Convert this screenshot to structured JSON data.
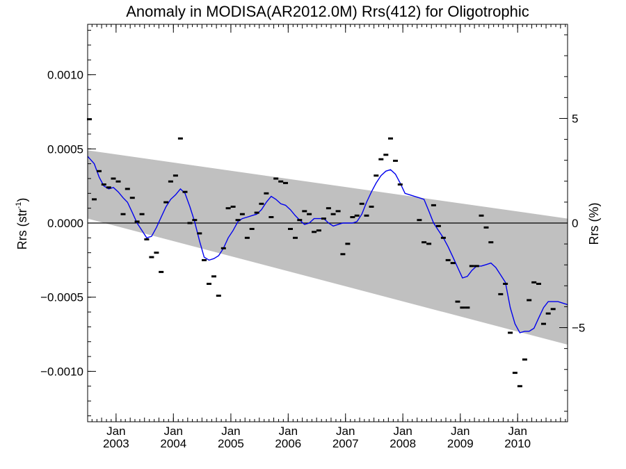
{
  "chart_data": {
    "type": "scatter",
    "title": "Anomaly in MODISA(AR2012.0M) Rrs(412) for Oligotrophic",
    "ylabel_left": {
      "base": "Rrs (str",
      "sup": "-1",
      "close": ")"
    },
    "ylabel_right": "Rrs (%)",
    "xlim": [
      "2002-07-04",
      "2010-11-15"
    ],
    "ylim": [
      -0.00134,
      0.00134
    ],
    "ylim_right_pct": [
      -9.5,
      9.5
    ],
    "x_ticks": [
      {
        "month": "Jan",
        "year": "2003",
        "date": "2003-01-01"
      },
      {
        "month": "Jan",
        "year": "2004",
        "date": "2004-01-01"
      },
      {
        "month": "Jan",
        "year": "2005",
        "date": "2005-01-01"
      },
      {
        "month": "Jan",
        "year": "2006",
        "date": "2006-01-01"
      },
      {
        "month": "Jan",
        "year": "2007",
        "date": "2007-01-01"
      },
      {
        "month": "Jan",
        "year": "2008",
        "date": "2008-01-01"
      },
      {
        "month": "Jan",
        "year": "2009",
        "date": "2009-01-01"
      },
      {
        "month": "Jan",
        "year": "2010",
        "date": "2010-01-01"
      }
    ],
    "y_ticks_left": [
      {
        "label": "0.0010",
        "value": 0.001
      },
      {
        "label": "0.0005",
        "value": 0.0005
      },
      {
        "label": "0.0000",
        "value": 0.0
      },
      {
        "label": "−0.0005",
        "value": -0.0005
      },
      {
        "label": "−0.0010",
        "value": -0.001
      }
    ],
    "y_ticks_right": [
      {
        "label": "5",
        "value": 5
      },
      {
        "label": "0",
        "value": 0
      },
      {
        "label": "−5",
        "value": -5
      }
    ],
    "band": {
      "color": "#c0c0c0",
      "upper": [
        [
          "2002-07-04",
          0.00049
        ],
        [
          "2010-11-15",
          3e-05
        ]
      ],
      "lower": [
        [
          "2002-07-04",
          3e-05
        ],
        [
          "2010-11-15",
          -0.00082
        ]
      ]
    },
    "zero_line": 0.0,
    "monthly_anomaly": [
      [
        "2002-07-15",
        0.0007
      ],
      [
        "2002-08-15",
        0.00016
      ],
      [
        "2002-09-15",
        0.00035
      ],
      [
        "2002-10-15",
        0.00026
      ],
      [
        "2002-11-15",
        0.00024
      ],
      [
        "2002-12-15",
        0.0003
      ],
      [
        "2003-01-15",
        0.00028
      ],
      [
        "2003-02-15",
        6e-05
      ],
      [
        "2003-03-15",
        0.00023
      ],
      [
        "2003-04-15",
        0.00017
      ],
      [
        "2003-05-15",
        1e-05
      ],
      [
        "2003-06-15",
        6e-05
      ],
      [
        "2003-07-15",
        -0.00011
      ],
      [
        "2003-08-15",
        -0.00023
      ],
      [
        "2003-09-15",
        -0.0002
      ],
      [
        "2003-10-15",
        -0.00033
      ],
      [
        "2003-11-15",
        0.00014
      ],
      [
        "2003-12-15",
        0.00028
      ],
      [
        "2004-01-15",
        0.00032
      ],
      [
        "2004-02-15",
        0.00057
      ],
      [
        "2004-03-15",
        0.00021
      ],
      [
        "2004-04-15",
        0.0
      ],
      [
        "2004-05-15",
        2e-05
      ],
      [
        "2004-06-15",
        -7e-05
      ],
      [
        "2004-07-15",
        -0.00025
      ],
      [
        "2004-08-15",
        -0.00041
      ],
      [
        "2004-09-15",
        -0.00036
      ],
      [
        "2004-10-15",
        -0.00049
      ],
      [
        "2004-11-15",
        -0.00017
      ],
      [
        "2004-12-15",
        0.0001
      ],
      [
        "2005-01-15",
        0.00011
      ],
      [
        "2005-02-15",
        2e-05
      ],
      [
        "2005-03-15",
        6e-05
      ],
      [
        "2005-04-15",
        -0.0001
      ],
      [
        "2005-05-15",
        -4e-05
      ],
      [
        "2005-06-15",
        7e-05
      ],
      [
        "2005-07-15",
        0.00013
      ],
      [
        "2005-08-15",
        0.0002
      ],
      [
        "2005-09-15",
        4e-05
      ],
      [
        "2005-10-15",
        0.0003
      ],
      [
        "2005-11-15",
        0.00028
      ],
      [
        "2005-12-15",
        0.00027
      ],
      [
        "2006-01-15",
        -4e-05
      ],
      [
        "2006-02-15",
        -0.0001
      ],
      [
        "2006-03-15",
        2e-05
      ],
      [
        "2006-04-15",
        8e-05
      ],
      [
        "2006-05-15",
        6e-05
      ],
      [
        "2006-06-15",
        -6e-05
      ],
      [
        "2006-07-15",
        -5e-05
      ],
      [
        "2006-08-15",
        3e-05
      ],
      [
        "2006-09-15",
        0.0001
      ],
      [
        "2006-10-15",
        6e-05
      ],
      [
        "2006-11-15",
        8e-05
      ],
      [
        "2006-12-15",
        -0.00021
      ],
      [
        "2007-01-15",
        -0.00014
      ],
      [
        "2007-02-15",
        4e-05
      ],
      [
        "2007-03-15",
        5e-05
      ],
      [
        "2007-04-15",
        0.00013
      ],
      [
        "2007-05-15",
        5e-05
      ],
      [
        "2007-06-15",
        0.00011
      ],
      [
        "2007-07-15",
        0.00032
      ],
      [
        "2007-08-15",
        0.00043
      ],
      [
        "2007-09-15",
        0.00046
      ],
      [
        "2007-10-15",
        0.00057
      ],
      [
        "2007-11-15",
        0.00042
      ],
      [
        "2007-12-15",
        0.00026
      ],
      [
        "2008-04-15",
        2e-05
      ],
      [
        "2008-05-15",
        -0.00013
      ],
      [
        "2008-06-15",
        -0.00014
      ],
      [
        "2008-07-15",
        0.00012
      ],
      [
        "2008-08-15",
        -2e-05
      ],
      [
        "2008-09-15",
        -0.0001
      ],
      [
        "2008-10-15",
        -0.00025
      ],
      [
        "2008-11-15",
        -0.00027
      ],
      [
        "2008-12-15",
        -0.00053
      ],
      [
        "2009-01-15",
        -0.00057
      ],
      [
        "2009-02-15",
        -0.00057
      ],
      [
        "2009-03-15",
        -0.00029
      ],
      [
        "2009-04-15",
        -0.00029
      ],
      [
        "2009-05-15",
        5e-05
      ],
      [
        "2009-06-15",
        -3e-05
      ],
      [
        "2009-07-15",
        -0.00013
      ],
      [
        "2009-09-15",
        -0.00048
      ],
      [
        "2009-10-15",
        -0.00041
      ],
      [
        "2009-11-15",
        -0.00074
      ],
      [
        "2009-12-15",
        -0.00101
      ],
      [
        "2010-01-15",
        -0.0011
      ],
      [
        "2010-02-15",
        -0.00092
      ],
      [
        "2010-03-15",
        -0.00052
      ],
      [
        "2010-04-15",
        -0.0004
      ],
      [
        "2010-05-15",
        -0.00041
      ],
      [
        "2010-06-15",
        -0.00068
      ],
      [
        "2010-07-15",
        -0.00061
      ],
      [
        "2010-08-15",
        -0.00058
      ]
    ],
    "smoothed": {
      "color": "#0000ee",
      "points": [
        [
          "2002-07-04",
          0.00045
        ],
        [
          "2002-08-15",
          0.0004
        ],
        [
          "2002-09-15",
          0.00031
        ],
        [
          "2002-10-15",
          0.00025
        ],
        [
          "2002-11-15",
          0.00023
        ],
        [
          "2002-12-15",
          0.00024
        ],
        [
          "2003-01-15",
          0.00021
        ],
        [
          "2003-02-15",
          0.00017
        ],
        [
          "2003-03-15",
          0.00014
        ],
        [
          "2003-04-15",
          7e-05
        ],
        [
          "2003-05-15",
          0.0
        ],
        [
          "2003-06-15",
          -5e-05
        ],
        [
          "2003-07-15",
          -0.0001
        ],
        [
          "2003-08-15",
          -9e-05
        ],
        [
          "2003-09-15",
          -3e-05
        ],
        [
          "2003-10-15",
          4e-05
        ],
        [
          "2003-11-15",
          0.00011
        ],
        [
          "2003-12-15",
          0.00016
        ],
        [
          "2004-01-15",
          0.00019
        ],
        [
          "2004-02-15",
          0.00023
        ],
        [
          "2004-03-15",
          0.0002
        ],
        [
          "2004-04-15",
          0.00011
        ],
        [
          "2004-05-15",
          1e-05
        ],
        [
          "2004-06-15",
          -0.00012
        ],
        [
          "2004-07-15",
          -0.00023
        ],
        [
          "2004-08-15",
          -0.00025
        ],
        [
          "2004-09-15",
          -0.00024
        ],
        [
          "2004-10-15",
          -0.00022
        ],
        [
          "2004-11-15",
          -0.00017
        ],
        [
          "2004-12-15",
          -0.0001
        ],
        [
          "2005-01-15",
          -5e-05
        ],
        [
          "2005-02-15",
          1e-05
        ],
        [
          "2005-03-15",
          3e-05
        ],
        [
          "2005-04-15",
          4e-05
        ],
        [
          "2005-05-15",
          5e-05
        ],
        [
          "2005-06-15",
          6e-05
        ],
        [
          "2005-07-15",
          9e-05
        ],
        [
          "2005-08-15",
          0.00014
        ],
        [
          "2005-09-15",
          0.00018
        ],
        [
          "2005-10-15",
          0.00016
        ],
        [
          "2005-11-15",
          0.00013
        ],
        [
          "2005-12-15",
          0.00012
        ],
        [
          "2006-01-15",
          9e-05
        ],
        [
          "2006-02-15",
          5e-05
        ],
        [
          "2006-03-15",
          2e-05
        ],
        [
          "2006-04-15",
          -1e-05
        ],
        [
          "2006-05-15",
          0.0
        ],
        [
          "2006-06-15",
          3e-05
        ],
        [
          "2006-07-15",
          3e-05
        ],
        [
          "2006-08-15",
          3e-05
        ],
        [
          "2006-09-15",
          0.0
        ],
        [
          "2006-10-15",
          -2e-05
        ],
        [
          "2006-11-15",
          -1e-05
        ],
        [
          "2006-12-15",
          0.0
        ],
        [
          "2007-01-15",
          0.0
        ],
        [
          "2007-02-15",
          0.0
        ],
        [
          "2007-03-15",
          1e-05
        ],
        [
          "2007-04-15",
          6e-05
        ],
        [
          "2007-05-15",
          0.00014
        ],
        [
          "2007-06-15",
          0.00021
        ],
        [
          "2007-07-15",
          0.00027
        ],
        [
          "2007-08-15",
          0.00032
        ],
        [
          "2007-09-15",
          0.00035
        ],
        [
          "2007-10-15",
          0.00036
        ],
        [
          "2007-11-15",
          0.00033
        ],
        [
          "2007-12-15",
          0.00027
        ],
        [
          "2008-01-15",
          0.0002
        ],
        [
          "2008-02-15",
          0.00019
        ],
        [
          "2008-03-15",
          0.00018
        ],
        [
          "2008-04-15",
          0.00017
        ],
        [
          "2008-05-15",
          0.00016
        ],
        [
          "2008-06-15",
          8e-05
        ],
        [
          "2008-07-15",
          0.0
        ],
        [
          "2008-08-15",
          -5e-05
        ],
        [
          "2008-09-15",
          -0.0001
        ],
        [
          "2008-10-15",
          -0.00016
        ],
        [
          "2008-11-15",
          -0.00023
        ],
        [
          "2008-12-15",
          -0.0003
        ],
        [
          "2009-01-15",
          -0.00037
        ],
        [
          "2009-02-15",
          -0.00036
        ],
        [
          "2009-03-15",
          -0.00032
        ],
        [
          "2009-04-15",
          -0.00029
        ],
        [
          "2009-05-15",
          -0.00029
        ],
        [
          "2009-06-15",
          -0.00028
        ],
        [
          "2009-07-15",
          -0.00027
        ],
        [
          "2009-08-15",
          -0.0003
        ],
        [
          "2009-09-15",
          -0.00035
        ],
        [
          "2009-10-15",
          -0.0004
        ],
        [
          "2009-11-15",
          -0.00057
        ],
        [
          "2009-12-15",
          -0.00068
        ],
        [
          "2010-01-15",
          -0.00074
        ],
        [
          "2010-02-15",
          -0.00073
        ],
        [
          "2010-03-15",
          -0.00073
        ],
        [
          "2010-04-15",
          -0.00071
        ],
        [
          "2010-05-15",
          -0.00064
        ],
        [
          "2010-06-15",
          -0.00057
        ],
        [
          "2010-07-15",
          -0.00053
        ],
        [
          "2010-08-15",
          -0.00053
        ],
        [
          "2010-09-15",
          -0.00053
        ],
        [
          "2010-11-15",
          -0.00055
        ]
      ]
    }
  }
}
